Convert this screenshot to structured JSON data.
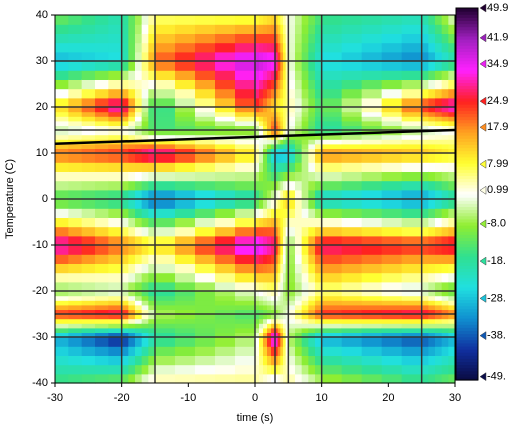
{
  "chart_data": {
    "type": "heatmap",
    "xlabel": "time (s)",
    "ylabel": "Temperature (C)",
    "x": [
      -30,
      -20,
      -15,
      0,
      3,
      5,
      10,
      25,
      30
    ],
    "y": [
      -40,
      -30,
      -25,
      -20,
      -10,
      0,
      10,
      15,
      20,
      30,
      40
    ],
    "z": [
      [
        -15,
        -10,
        5,
        5,
        -5,
        5,
        -5,
        -15,
        -10
      ],
      [
        -30,
        -45,
        -20,
        -5,
        40,
        -5,
        -30,
        -40,
        -30
      ],
      [
        25,
        30,
        -5,
        -15,
        -10,
        0,
        25,
        30,
        20
      ],
      [
        -10,
        -5,
        -20,
        0,
        5,
        -10,
        5,
        -5,
        -15
      ],
      [
        35,
        20,
        10,
        40,
        30,
        -10,
        30,
        25,
        30
      ],
      [
        -15,
        -20,
        -40,
        -20,
        0,
        15,
        -25,
        -35,
        -20
      ],
      [
        20,
        25,
        35,
        10,
        -30,
        -30,
        20,
        15,
        10
      ],
      [
        -5,
        0,
        -15,
        -10,
        25,
        0,
        -20,
        -5,
        0
      ],
      [
        10,
        35,
        -20,
        25,
        10,
        5,
        -15,
        25,
        35
      ],
      [
        -30,
        -25,
        20,
        40,
        35,
        0,
        -25,
        -35,
        -20
      ],
      [
        -10,
        -20,
        5,
        5,
        10,
        0,
        -15,
        -20,
        0
      ]
    ],
    "xlim": [
      -30,
      30
    ],
    "xticks": [
      -30,
      -20,
      -10,
      0,
      10,
      20,
      30
    ],
    "ylim": [
      -40,
      40
    ],
    "yticks": [
      -40,
      -30,
      -20,
      -10,
      0,
      10,
      20,
      30,
      40
    ],
    "zlim": [
      -49.9,
      49.9
    ],
    "zticks": [
      49.9,
      41.9,
      34.9,
      24.9,
      17.9,
      7.99,
      0.99,
      {
        "value": -8.0,
        "label": "-8.0"
      },
      {
        "value": -18,
        "label": "-18."
      },
      {
        "value": -28,
        "label": "-28."
      },
      {
        "value": -38,
        "label": "-38."
      },
      {
        "value": -49,
        "label": "-49."
      }
    ],
    "colormap": [
      "#0a0a40",
      "#1030a0",
      "#1090d0",
      "#20e0e0",
      "#30e090",
      "#90ee30",
      "#ffffff",
      "#ffff30",
      "#ffa020",
      "#ff2020",
      "#ff20ff",
      "#a020c0",
      "#200030"
    ],
    "mesh_color": "#333333",
    "line": {
      "color": "#000000",
      "x": [
        -30,
        30
      ],
      "y": [
        12,
        15
      ]
    }
  }
}
